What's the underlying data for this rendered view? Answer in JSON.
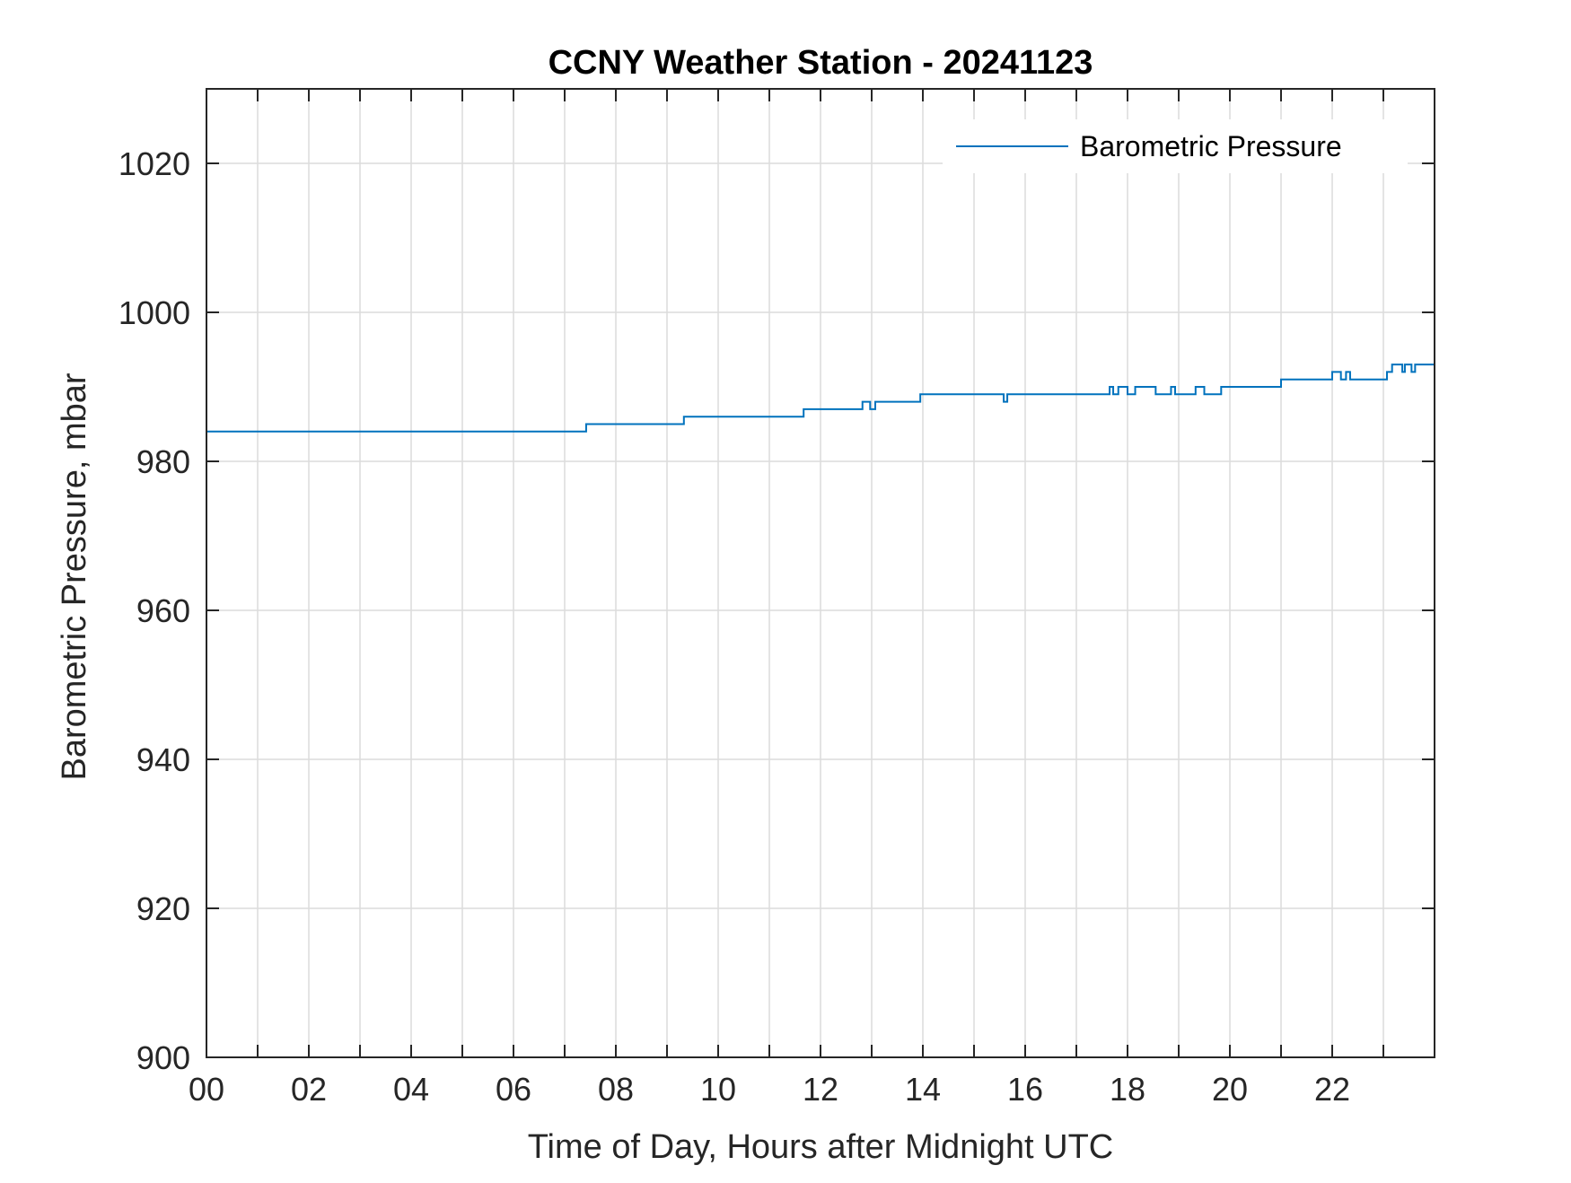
{
  "chart_data": {
    "type": "line",
    "title": "CCNY Weather Station - 20241123",
    "xlabel": "Time of Day, Hours after Midnight UTC",
    "ylabel": "Barometric Pressure, mbar",
    "xlim": [
      0,
      24
    ],
    "ylim": [
      900,
      1030
    ],
    "x_ticks": [
      0,
      2,
      4,
      6,
      8,
      10,
      12,
      14,
      16,
      18,
      20,
      22
    ],
    "x_tick_labels": [
      "00",
      "02",
      "04",
      "06",
      "08",
      "10",
      "12",
      "14",
      "16",
      "18",
      "20",
      "22"
    ],
    "x_minor_ticks": [
      1,
      3,
      5,
      7,
      9,
      11,
      13,
      15,
      17,
      19,
      21,
      23
    ],
    "y_ticks": [
      900,
      920,
      940,
      960,
      980,
      1000,
      1020
    ],
    "y_tick_labels": [
      "900",
      "920",
      "940",
      "960",
      "980",
      "1000",
      "1020"
    ],
    "grid": true,
    "legend_position": "top-right",
    "line_style": "step",
    "series": [
      {
        "name": "Barometric Pressure",
        "color": "#0072BD",
        "x": [
          0,
          7.42,
          9.33,
          11.67,
          12.82,
          12.97,
          13.07,
          13.95,
          15.58,
          15.65,
          17.65,
          17.72,
          17.82,
          18.0,
          18.15,
          18.55,
          18.85,
          18.93,
          19.33,
          19.5,
          19.83,
          21.0,
          22.0,
          22.17,
          22.27,
          22.35,
          23.07,
          23.17,
          23.37,
          23.42,
          23.55,
          23.62,
          24.0
        ],
        "values": [
          984,
          985,
          986,
          987,
          988,
          987,
          988,
          989,
          988,
          989,
          990,
          989,
          990,
          989,
          990,
          989,
          990,
          989,
          990,
          989,
          990,
          991,
          992,
          991,
          992,
          991,
          992,
          993,
          992,
          993,
          992,
          993,
          993
        ]
      }
    ]
  }
}
